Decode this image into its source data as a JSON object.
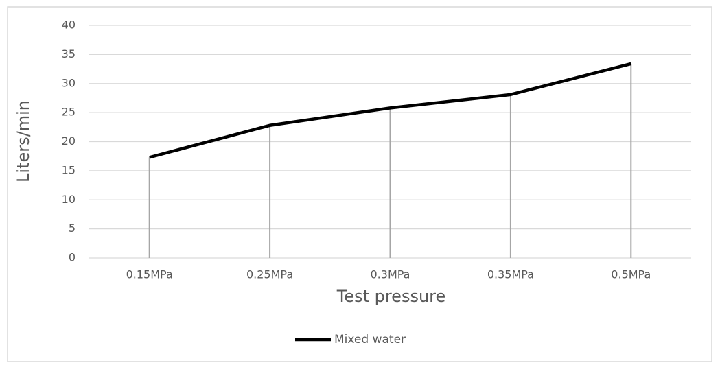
{
  "chart_data": {
    "type": "line",
    "categories": [
      "0.15MPa",
      "0.25MPa",
      "0.3MPa",
      "0.35MPa",
      "0.5MPa"
    ],
    "series": [
      {
        "name": "Mixed water",
        "color": "#000000",
        "values": [
          17.3,
          22.8,
          25.8,
          28.1,
          33.4
        ]
      }
    ],
    "x_label": "Test pressure",
    "y_label": "Liters/min",
    "ylim": [
      0,
      40
    ],
    "yticks": [
      0,
      5,
      10,
      15,
      20,
      25,
      30,
      35,
      40
    ],
    "grid": true,
    "drop_lines": true,
    "legend": "bottom"
  }
}
